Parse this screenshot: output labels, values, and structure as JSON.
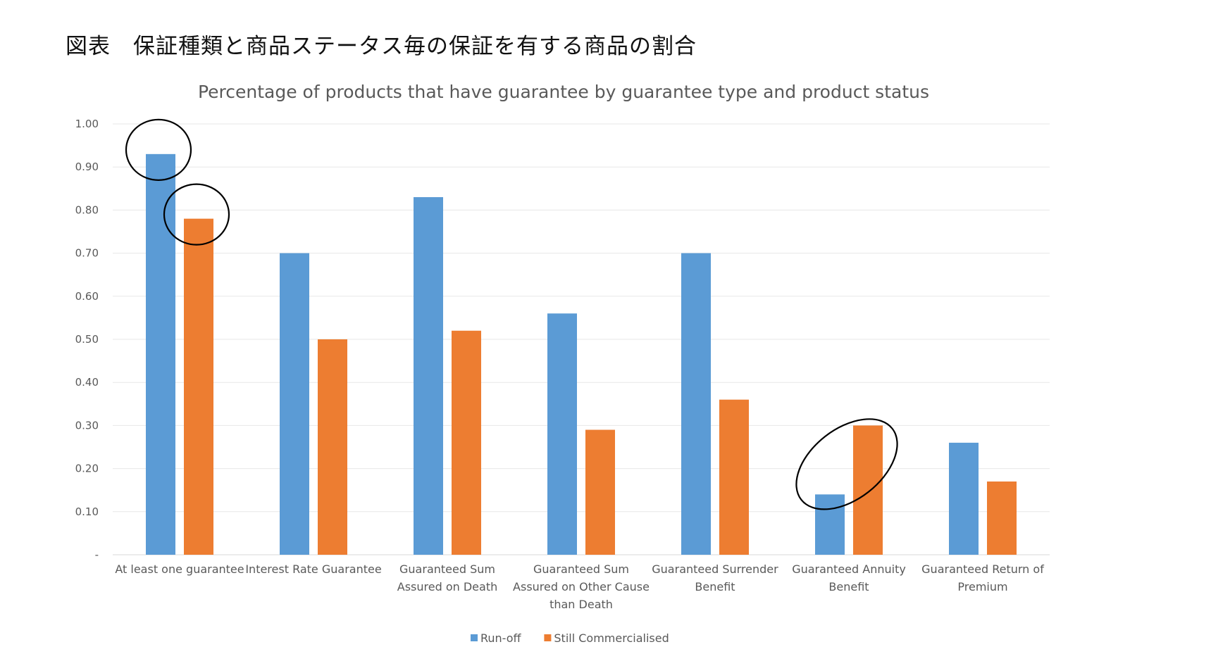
{
  "figure_caption": "図表　保証種類と商品ステータス毎の保証を有する商品の割合",
  "chart_data": {
    "type": "bar",
    "title": "Percentage of products that have guarantee by guarantee type and product status",
    "categories": [
      [
        "At least one guarantee"
      ],
      [
        "Interest Rate Guarantee"
      ],
      [
        "Guaranteed Sum",
        "Assured on Death"
      ],
      [
        "Guaranteed Sum",
        "Assured on Other Cause",
        "than Death"
      ],
      [
        "Guaranteed Surrender",
        "Benefit"
      ],
      [
        "Guaranteed Annuity",
        "Benefit"
      ],
      [
        "Guaranteed Return of",
        "Premium"
      ]
    ],
    "series": [
      {
        "name": "Run-off",
        "color": "#5B9BD5",
        "values": [
          0.93,
          0.7,
          0.83,
          0.56,
          0.7,
          0.14,
          0.26
        ]
      },
      {
        "name": "Still Commercialised",
        "color": "#ED7D31",
        "values": [
          0.78,
          0.5,
          0.52,
          0.29,
          0.36,
          0.3,
          0.17
        ]
      }
    ],
    "ylim": [
      0,
      1.0
    ],
    "y_ticks": [
      "-",
      "0.10",
      "0.20",
      "0.30",
      "0.40",
      "0.50",
      "0.60",
      "0.70",
      "0.80",
      "0.90",
      "1.00"
    ],
    "xlabel": "",
    "ylabel": "",
    "grid": true,
    "legend_position": "bottom-center",
    "highlighted": [
      {
        "series": 0,
        "category": 0
      },
      {
        "series": 1,
        "category": 0
      },
      {
        "series": [
          0,
          1
        ],
        "category": 5
      }
    ]
  }
}
